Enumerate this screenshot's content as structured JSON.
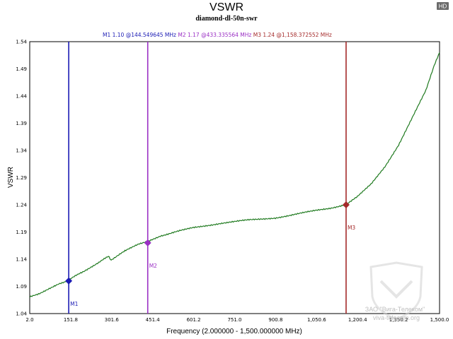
{
  "badge": "HD",
  "chart_data": {
    "type": "line",
    "title": "VSWR",
    "subtitle": "diamond-dl-50n-swr",
    "xlabel": "Frequency (2.000000 - 1,500.000000 MHz)",
    "ylabel": "VSWR",
    "xlim": [
      2.0,
      1500.0
    ],
    "ylim": [
      1.04,
      1.54
    ],
    "x_ticks": [
      2.0,
      151.8,
      301.6,
      451.4,
      601.2,
      751.0,
      900.8,
      1050.6,
      1200.4,
      1350.2,
      1500.0
    ],
    "x_tick_labels": [
      "2.0",
      "151.8",
      "301.6",
      "451.4",
      "601.2",
      "751.0",
      "900.8",
      "1,050.6",
      "1,200.4",
      "1,350.2",
      "1,500.0"
    ],
    "y_ticks": [
      1.04,
      1.09,
      1.14,
      1.19,
      1.24,
      1.29,
      1.34,
      1.39,
      1.44,
      1.49,
      1.54
    ],
    "y_tick_labels": [
      "1.04",
      "1.09",
      "1.14",
      "1.19",
      "1.24",
      "1.29",
      "1.34",
      "1.39",
      "1.44",
      "1.49",
      "1.54"
    ],
    "grid": true,
    "series": [
      {
        "color": "#1f7a1f",
        "x": [
          2,
          50,
          100,
          144.55,
          200,
          250,
          290,
          300,
          350,
          400,
          433.34,
          480,
          550,
          600,
          650,
          700,
          750,
          800,
          850,
          900,
          950,
          1000,
          1050,
          1100,
          1158.37,
          1200,
          1250,
          1300,
          1350,
          1400,
          1450,
          1480,
          1500
        ],
        "y": [
          1.07,
          1.08,
          1.092,
          1.102,
          1.118,
          1.133,
          1.145,
          1.138,
          1.155,
          1.168,
          1.172,
          1.183,
          1.192,
          1.198,
          1.202,
          1.206,
          1.209,
          1.212,
          1.214,
          1.216,
          1.22,
          1.225,
          1.23,
          1.234,
          1.24,
          1.255,
          1.278,
          1.31,
          1.35,
          1.4,
          1.45,
          1.495,
          1.52
        ]
      }
    ],
    "markers": [
      {
        "label": "M1",
        "header": "M1  1.10 @144.549645 MHz",
        "x": 144.549645,
        "y": 1.1,
        "color": "#1a1ab4"
      },
      {
        "label": "M2",
        "header": "M2  1.17 @433.335564 MHz",
        "x": 433.335564,
        "y": 1.17,
        "color": "#9a2fc4"
      },
      {
        "label": "M3",
        "header": "M3  1.24 @1,158.372552 MHz",
        "x": 1158.372552,
        "y": 1.24,
        "color": "#a42a2a"
      }
    ]
  },
  "watermark": {
    "line1": "ЗАО \"Вига-Телеком\"",
    "line2": "viva-telecom.org"
  }
}
